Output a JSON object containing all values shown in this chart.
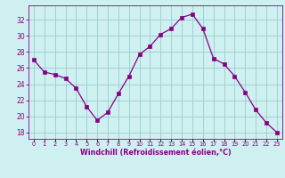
{
  "x": [
    0,
    1,
    2,
    3,
    4,
    5,
    6,
    7,
    8,
    9,
    10,
    11,
    12,
    13,
    14,
    15,
    16,
    17,
    18,
    19,
    20,
    21,
    22,
    23
  ],
  "y": [
    27.0,
    25.5,
    25.2,
    24.7,
    23.5,
    21.2,
    19.5,
    20.5,
    22.8,
    25.0,
    27.7,
    28.7,
    30.2,
    30.9,
    32.3,
    32.7,
    30.9,
    27.2,
    26.5,
    25.0,
    23.0,
    20.8,
    19.2,
    18.0
  ],
  "line_color": "#880088",
  "marker": "s",
  "marker_size": 2.2,
  "bg_color": "#cff0f0",
  "grid_color": "#99cccc",
  "ylabel_ticks": [
    18,
    20,
    22,
    24,
    26,
    28,
    30,
    32
  ],
  "ylim": [
    17.2,
    33.8
  ],
  "xlim": [
    -0.5,
    23.5
  ],
  "xlabel": "Windchill (Refroidissement éolien,°C)",
  "tick_color": "#880088",
  "axis_color": "#880088",
  "xlabel_fontsize": 5.8,
  "ytick_fontsize": 5.5,
  "xtick_fontsize": 4.8,
  "linewidth": 0.9
}
